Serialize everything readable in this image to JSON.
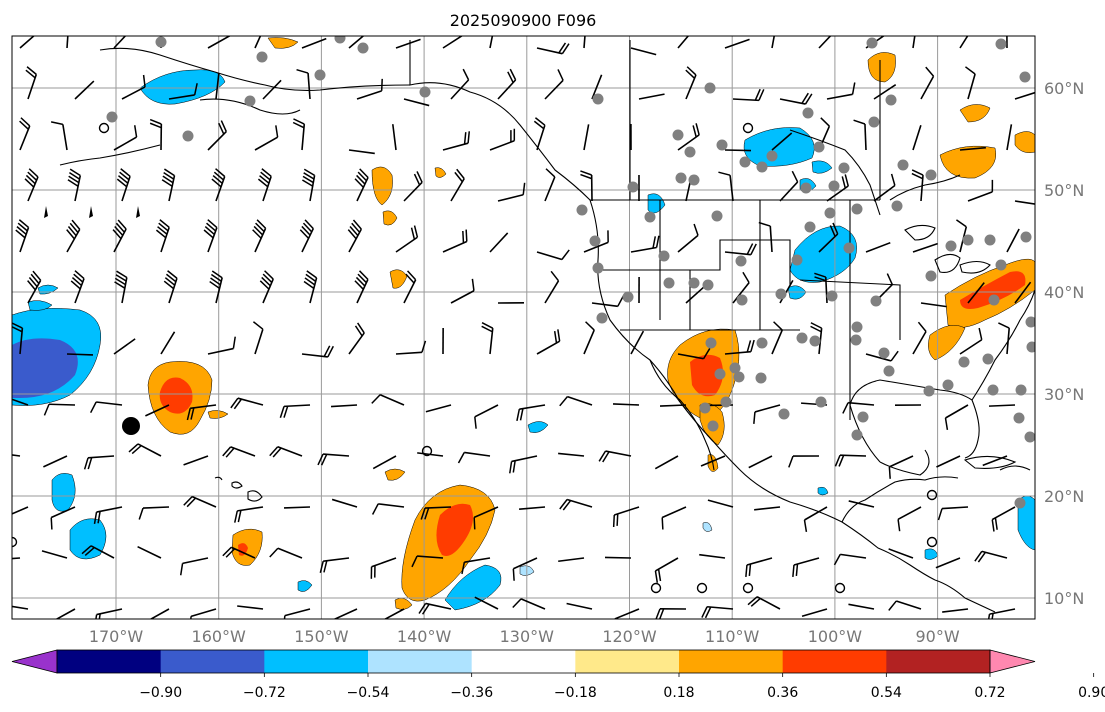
{
  "title": "2025090900 F096",
  "longitude_labels": [
    "170°W",
    "160°W",
    "150°W",
    "140°W",
    "130°W",
    "120°W",
    "110°W",
    "100°W",
    "90°W"
  ],
  "latitude_labels": [
    "60°N",
    "50°N",
    "40°N",
    "30°N",
    "20°N",
    "10°N"
  ],
  "colorbar": {
    "colors": [
      "#9932cc",
      "#000080",
      "#3a5bcc",
      "#00bfff",
      "#aee3ff",
      "#ffffff",
      "#ffe98a",
      "#ffa500",
      "#ff3c00",
      "#b22222",
      "#ff88b0"
    ],
    "tick_labels": [
      "−0.90",
      "−0.72",
      "−0.54",
      "−0.36",
      "−0.18",
      "0.18",
      "0.36",
      "0.54",
      "0.72",
      "0.90"
    ]
  },
  "chart_data": {
    "type": "heatmap",
    "map_extent": {
      "lon": [
        -180,
        -80
      ],
      "lat": [
        7,
        64
      ]
    },
    "fill_levels": [
      -0.9,
      -0.72,
      -0.54,
      -0.36,
      -0.18,
      0.18,
      0.36,
      0.54,
      0.72,
      0.9
    ],
    "regions": [
      {
        "name": "subtropical-pacific-negative",
        "lon": -174,
        "lat": 33,
        "peak": -0.72
      },
      {
        "name": "hawaii-north-positive",
        "lon": -164,
        "lat": 30,
        "peak": 0.72
      },
      {
        "name": "eastern-pacific-positive",
        "lon": -143,
        "lat": 16,
        "peak": 0.72
      },
      {
        "name": "baja-california-positive",
        "lon": -112,
        "lat": 31,
        "peak": 0.72
      },
      {
        "name": "great-lakes-positive",
        "lon": -86,
        "lat": 40,
        "peak": 0.72
      },
      {
        "name": "northern-plains-negative",
        "lon": -103,
        "lat": 44,
        "peak": -0.54
      },
      {
        "name": "canada-negative",
        "lon": -106,
        "lat": 53,
        "peak": -0.36
      },
      {
        "name": "bering-negative",
        "lon": -158,
        "lat": 61,
        "peak": -0.36
      },
      {
        "name": "central-pacific-negative",
        "lon": -174,
        "lat": 18,
        "peak": -0.36
      },
      {
        "name": "eastern-pacific-negative",
        "lon": -138,
        "lat": 9,
        "peak": -0.36
      }
    ]
  }
}
